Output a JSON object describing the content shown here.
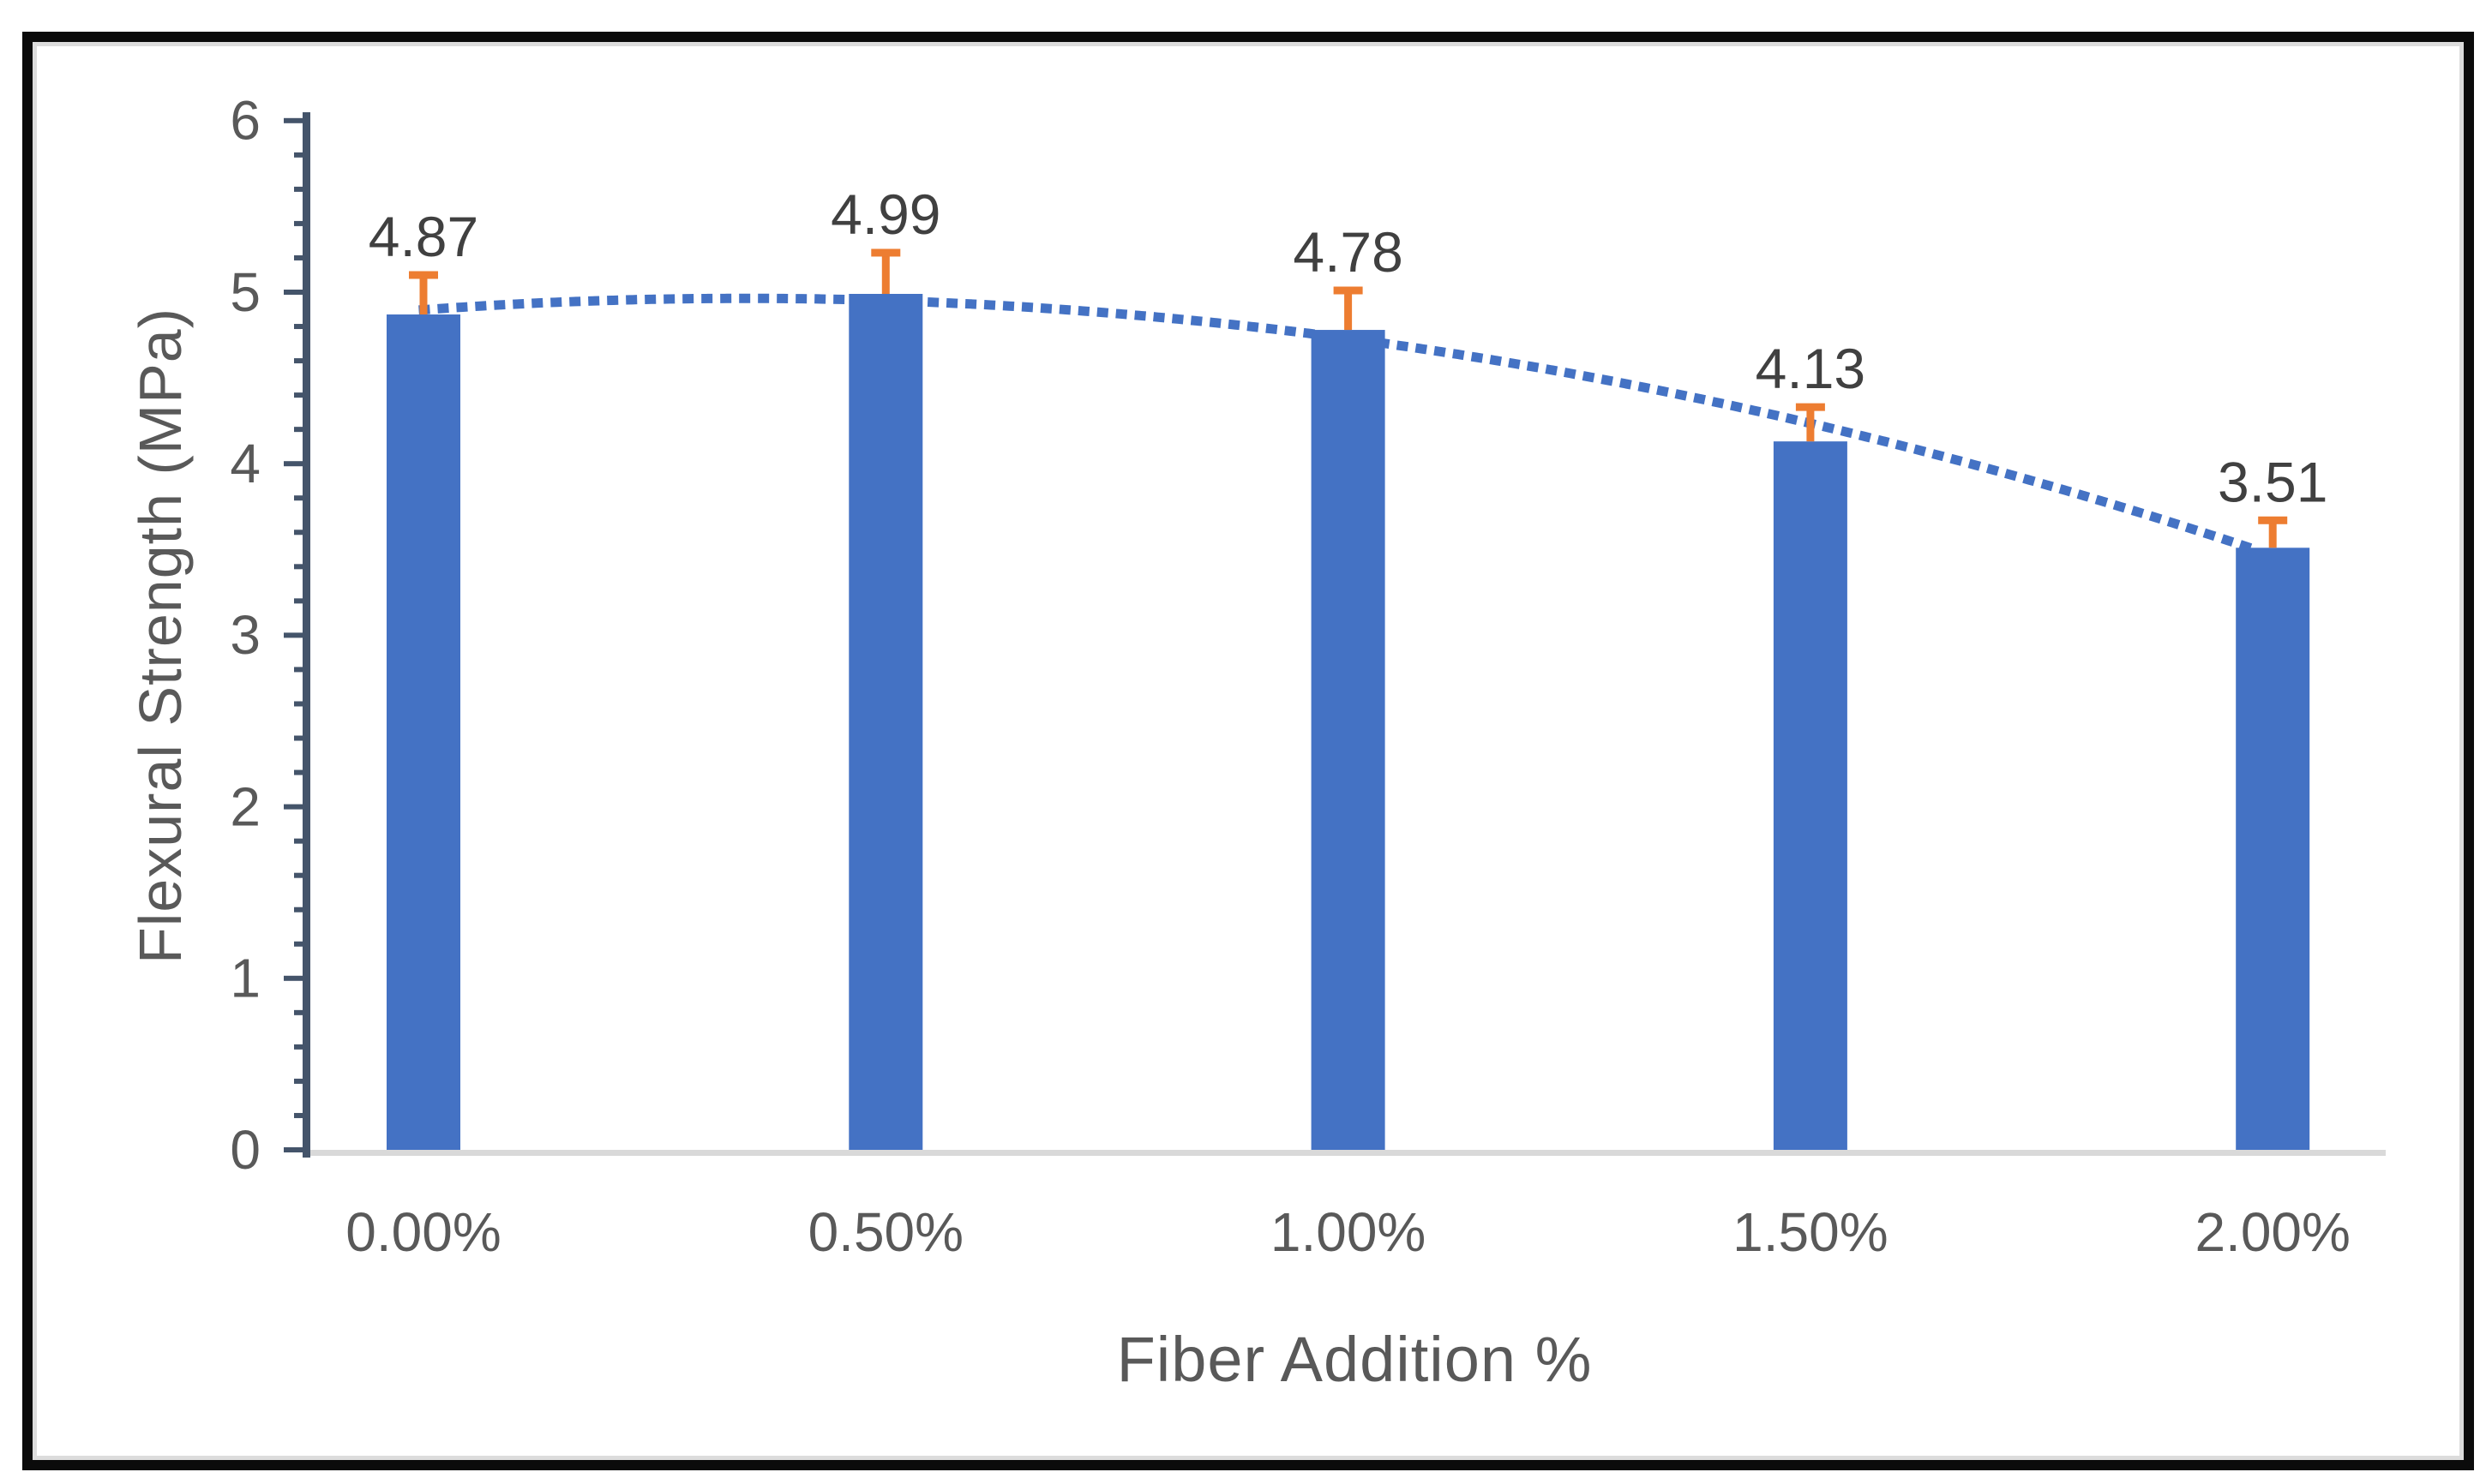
{
  "chart_data": {
    "type": "bar",
    "title": "",
    "categories": [
      "0.00%",
      "0.50%",
      "1.00%",
      "1.50%",
      "2.00%"
    ],
    "series": [
      {
        "values": [
          4.87,
          4.99,
          4.78,
          4.13,
          3.51
        ],
        "error_plus": [
          0.23,
          0.24,
          0.23,
          0.2,
          0.16
        ],
        "data_labels": [
          "4.87",
          "4.99",
          "4.78",
          "4.13",
          "3.51"
        ]
      }
    ],
    "trendline": {
      "type": "polynomial",
      "order": 2,
      "style": "dotted",
      "span": [
        0,
        3.95
      ]
    },
    "xlabel": "Fiber Addition %",
    "ylabel": "Flexural Strength (MPa)",
    "ylim": [
      0,
      6
    ],
    "y_major_tick_labels": [
      "0",
      "1",
      "2",
      "3",
      "4",
      "5",
      "6"
    ],
    "y_minor_tick_step": 0.2,
    "legend": "none",
    "grid": "off",
    "colors": {
      "bar": "#4472C4",
      "error_bar": "#ED7D31",
      "trendline": "#4472C4",
      "axis_line": "#44546A",
      "baseline": "#D9D9D9",
      "tick_label": "#595959",
      "data_label": "#404040",
      "axis_title": "#595959",
      "frame_border": "#0B0B0B",
      "inner_border": "#DCDCDC",
      "background": "#FFFFFF"
    }
  }
}
